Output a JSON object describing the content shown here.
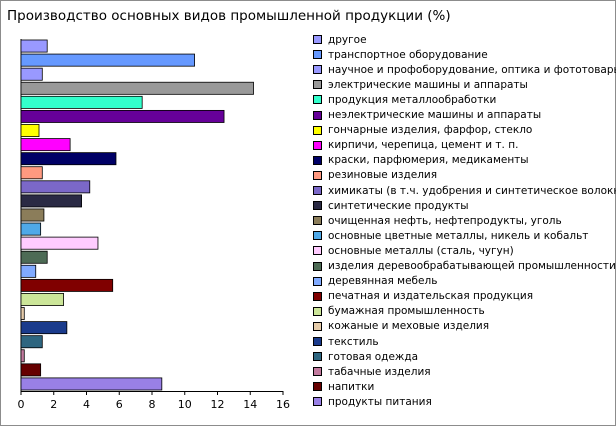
{
  "chart_data": {
    "type": "bar",
    "orientation": "horizontal",
    "title": "Производство основных видов промышленной продукции (%)",
    "xlim": [
      0,
      16
    ],
    "xticks": [
      0,
      2,
      4,
      6,
      8,
      10,
      12,
      14,
      16
    ],
    "grid": false,
    "legend_position": "right",
    "categories": [
      "другое",
      "транспортное оборудование",
      "научное и профоборудование, оптика и фототовары",
      "электрические машины и аппараты",
      "продукция металлообработки",
      "неэлектрические машины и аппараты",
      "гончарные изделия, фарфор, стекло",
      "кирпичи, черепица, цемент и т. п.",
      "краски, парфюмерия, медикаменты",
      "резиновые изделия",
      "химикаты (в т.ч. удобрения и синтетическое волокно)",
      "синтетические продукты",
      "очищенная нефть, нефтепродукты, уголь",
      "основные цветные металлы, никель и кобальт",
      "основные металлы (сталь, чугун)",
      "изделия деревообрабатывающей промышленности",
      "деревянная мебель",
      "печатная и издательская продукция",
      "бумажная промышленность",
      "кожаные и меховые изделия",
      "текстиль",
      "готовая одежда",
      "табачные изделия",
      "напитки",
      "продукты питания"
    ],
    "values": [
      1.6,
      10.6,
      1.3,
      14.2,
      7.4,
      12.4,
      1.1,
      3.0,
      5.8,
      1.3,
      4.2,
      3.7,
      1.4,
      1.2,
      4.7,
      1.6,
      0.9,
      5.6,
      2.6,
      0.2,
      2.8,
      1.3,
      0.2,
      1.2,
      8.6
    ],
    "colors": [
      "#9999FF",
      "#6699FF",
      "#9999FF",
      "#999999",
      "#33FFCC",
      "#660099",
      "#FFFF00",
      "#FF00FF",
      "#000066",
      "#FF9980",
      "#7B68C8",
      "#2A2A44",
      "#8B7D5A",
      "#4FA9E8",
      "#FFCCFF",
      "#4D6B55",
      "#80AAFF",
      "#800000",
      "#CCE699",
      "#E6CCAA",
      "#1A3B8C",
      "#2E6680",
      "#C27A9E",
      "#660000",
      "#9980E6"
    ]
  }
}
